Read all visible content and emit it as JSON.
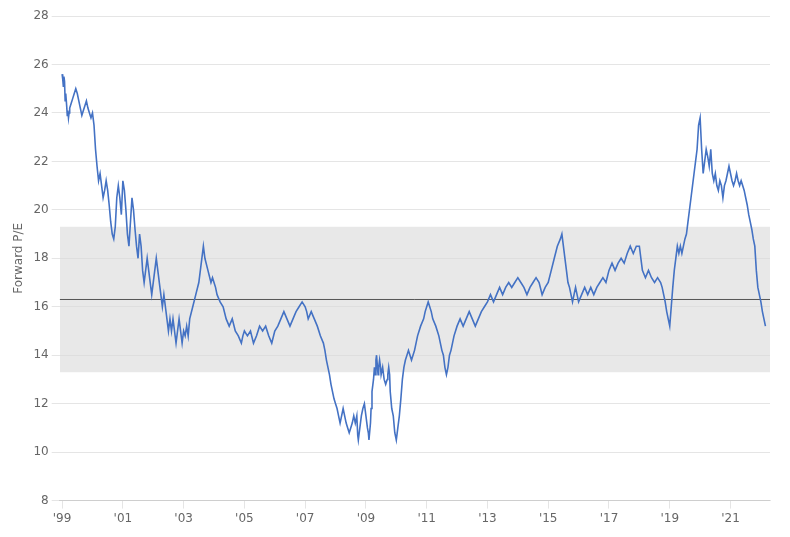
{
  "chart_data": {
    "type": "line",
    "ylabel": "Forward P/E",
    "xlim": [
      1998.92,
      2022.3
    ],
    "xticks": [
      {
        "value": 1999,
        "label": "'99"
      },
      {
        "value": 2001,
        "label": "'01"
      },
      {
        "value": 2003,
        "label": "'03"
      },
      {
        "value": 2005,
        "label": "'05"
      },
      {
        "value": 2007,
        "label": "'07"
      },
      {
        "value": 2009,
        "label": "'09"
      },
      {
        "value": 2011,
        "label": "'11"
      },
      {
        "value": 2013,
        "label": "'13"
      },
      {
        "value": 2015,
        "label": "'15"
      },
      {
        "value": 2017,
        "label": "'17"
      },
      {
        "value": 2019,
        "label": "'19"
      },
      {
        "value": 2021,
        "label": "'21"
      }
    ],
    "ylim": [
      8,
      28
    ],
    "yticks": [
      8,
      10,
      12,
      14,
      16,
      18,
      20,
      22,
      24,
      26,
      28
    ],
    "grid": true,
    "color": "#4472C4",
    "mean_line": {
      "value": 16.3,
      "color": "#555555"
    },
    "band": {
      "lower": 13.3,
      "upper": 19.3,
      "color": "#d8d8d8"
    },
    "x": [
      1999.0,
      1999.02,
      1999.04,
      1999.06,
      1999.08,
      1999.1,
      1999.12,
      1999.15,
      1999.17,
      1999.19,
      1999.21,
      1999.23,
      1999.25,
      1999.3,
      1999.35,
      1999.4,
      1999.45,
      1999.5,
      1999.55,
      1999.6,
      1999.65,
      1999.7,
      1999.75,
      1999.8,
      1999.85,
      1999.9,
      1999.95,
      2000.0,
      2000.05,
      2000.1,
      2000.15,
      2000.2,
      2000.25,
      2000.3,
      2000.35,
      2000.4,
      2000.45,
      2000.5,
      2000.55,
      2000.6,
      2000.65,
      2000.7,
      2000.75,
      2000.8,
      2000.85,
      2000.9,
      2000.95,
      2001.0,
      2001.05,
      2001.1,
      2001.15,
      2001.2,
      2001.25,
      2001.3,
      2001.35,
      2001.4,
      2001.45,
      2001.5,
      2001.55,
      2001.6,
      2001.65,
      2001.7,
      2001.75,
      2001.8,
      2001.85,
      2001.9,
      2001.95,
      2002.0,
      2002.05,
      2002.1,
      2002.15,
      2002.2,
      2002.25,
      2002.3,
      2002.35,
      2002.4,
      2002.45,
      2002.5,
      2002.55,
      2002.6,
      2002.65,
      2002.7,
      2002.75,
      2002.8,
      2002.85,
      2002.9,
      2002.95,
      2003.0,
      2003.05,
      2003.1,
      2003.15,
      2003.2,
      2003.3,
      2003.4,
      2003.5,
      2003.6,
      2003.65,
      2003.7,
      2003.8,
      2003.9,
      2003.95,
      2004.0,
      2004.05,
      2004.1,
      2004.2,
      2004.3,
      2004.4,
      2004.5,
      2004.6,
      2004.7,
      2004.8,
      2004.9,
      2004.95,
      2005.0,
      2005.1,
      2005.2,
      2005.3,
      2005.4,
      2005.5,
      2005.6,
      2005.7,
      2005.8,
      2005.9,
      2006.0,
      2006.1,
      2006.2,
      2006.3,
      2006.4,
      2006.5,
      2006.6,
      2006.7,
      2006.8,
      2006.9,
      2007.0,
      2007.05,
      2007.1,
      2007.2,
      2007.3,
      2007.4,
      2007.5,
      2007.6,
      2007.65,
      2007.7,
      2007.75,
      2007.8,
      2007.85,
      2007.9,
      2007.95,
      2008.0,
      2008.05,
      2008.1,
      2008.15,
      2008.2,
      2008.25,
      2008.3,
      2008.35,
      2008.4,
      2008.45,
      2008.5,
      2008.55,
      2008.6,
      2008.65,
      2008.7,
      2008.73,
      2008.75,
      2008.78,
      2008.82,
      2008.85,
      2008.9,
      2008.95,
      2009.0,
      2009.05,
      2009.08,
      2009.1,
      2009.15,
      2009.17,
      2009.2,
      2009.25,
      2009.28,
      2009.3,
      2009.33,
      2009.35,
      2009.38,
      2009.4,
      2009.42,
      2009.45,
      2009.48,
      2009.5,
      2009.55,
      2009.6,
      2009.65,
      2009.7,
      2009.72,
      2009.75,
      2009.78,
      2009.8,
      2009.85,
      2009.9,
      2009.95,
      2010.0,
      2010.05,
      2010.1,
      2010.15,
      2010.2,
      2010.25,
      2010.3,
      2010.35,
      2010.4,
      2010.45,
      2010.5,
      2010.55,
      2010.6,
      2010.65,
      2010.7,
      2010.8,
      2010.9,
      2010.95,
      2011.0,
      2011.05,
      2011.1,
      2011.15,
      2011.2,
      2011.3,
      2011.4,
      2011.45,
      2011.5,
      2011.55,
      2011.6,
      2011.65,
      2011.7,
      2011.75,
      2011.8,
      2011.85,
      2011.9,
      2011.95,
      2012.0,
      2012.1,
      2012.2,
      2012.3,
      2012.4,
      2012.5,
      2012.6,
      2012.7,
      2012.8,
      2012.9,
      2013.0,
      2013.1,
      2013.2,
      2013.3,
      2013.4,
      2013.5,
      2013.6,
      2013.7,
      2013.8,
      2013.9,
      2014.0,
      2014.1,
      2014.2,
      2014.3,
      2014.4,
      2014.5,
      2014.6,
      2014.7,
      2014.8,
      2014.9,
      2015.0,
      2015.1,
      2015.2,
      2015.3,
      2015.4,
      2015.45,
      2015.5,
      2015.55,
      2015.6,
      2015.65,
      2015.7,
      2015.75,
      2015.8,
      2015.85,
      2015.9,
      2015.95,
      2016.0,
      2016.1,
      2016.2,
      2016.3,
      2016.4,
      2016.5,
      2016.6,
      2016.7,
      2016.8,
      2016.9,
      2017.0,
      2017.1,
      2017.2,
      2017.3,
      2017.4,
      2017.5,
      2017.6,
      2017.7,
      2017.8,
      2017.9,
      2018.0,
      2018.05,
      2018.1,
      2018.2,
      2018.3,
      2018.4,
      2018.5,
      2018.6,
      2018.7,
      2018.75,
      2018.8,
      2018.85,
      2018.9,
      2018.95,
      2019.0,
      2019.05,
      2019.1,
      2019.15,
      2019.2,
      2019.25,
      2019.3,
      2019.35,
      2019.4,
      2019.45,
      2019.5,
      2019.55,
      2019.6,
      2019.7,
      2019.75,
      2019.8,
      2019.85,
      2019.9,
      2019.95,
      2020.0,
      2020.05,
      2020.1,
      2020.15,
      2020.2,
      2020.25,
      2020.3,
      2020.35,
      2020.4,
      2020.45,
      2020.5,
      2020.55,
      2020.6,
      2020.65,
      2020.7,
      2020.75,
      2020.8,
      2020.85,
      2020.9,
      2020.95,
      2021.0,
      2021.05,
      2021.1,
      2021.15,
      2021.2,
      2021.25,
      2021.3,
      2021.35,
      2021.4,
      2021.45,
      2021.5,
      2021.55,
      2021.6,
      2021.65,
      2021.7,
      2021.75,
      2021.8,
      2021.85,
      2021.9,
      2021.95,
      2022.0,
      2022.05,
      2022.1,
      2022.15
    ],
    "values": [
      25.6,
      25.4,
      25.1,
      25.5,
      25.3,
      24.5,
      24.8,
      24.3,
      23.9,
      24.1,
      23.8,
      24.0,
      24.2,
      24.4,
      24.6,
      24.8,
      25.0,
      24.8,
      24.5,
      24.2,
      23.9,
      24.1,
      24.3,
      24.5,
      24.2,
      24.0,
      23.8,
      24.0,
      23.5,
      22.5,
      21.8,
      21.2,
      21.5,
      21.0,
      20.5,
      20.8,
      21.2,
      20.8,
      20.2,
      19.5,
      19.0,
      18.8,
      19.3,
      20.5,
      21.0,
      20.5,
      19.8,
      21.2,
      20.8,
      20.0,
      19.0,
      18.5,
      19.5,
      20.5,
      20.0,
      19.2,
      18.5,
      18.0,
      19.0,
      18.5,
      17.5,
      17.0,
      17.5,
      18.0,
      17.5,
      17.0,
      16.5,
      17.0,
      17.5,
      18.0,
      17.5,
      17.0,
      16.5,
      16.0,
      16.5,
      16.0,
      15.5,
      15.0,
      15.5,
      15.0,
      15.5,
      15.0,
      14.5,
      15.0,
      15.5,
      15.0,
      14.5,
      15.0,
      14.8,
      15.2,
      14.8,
      15.5,
      16.0,
      16.5,
      17.0,
      18.0,
      18.5,
      18.0,
      17.5,
      17.0,
      17.2,
      17.0,
      16.8,
      16.5,
      16.2,
      16.0,
      15.5,
      15.2,
      15.5,
      15.0,
      14.8,
      14.5,
      14.8,
      15.0,
      14.8,
      15.0,
      14.5,
      14.8,
      15.2,
      15.0,
      15.2,
      14.8,
      14.5,
      15.0,
      15.2,
      15.5,
      15.8,
      15.5,
      15.2,
      15.5,
      15.8,
      16.0,
      16.2,
      16.0,
      15.8,
      15.5,
      15.8,
      15.5,
      15.2,
      14.8,
      14.5,
      14.2,
      13.8,
      13.5,
      13.2,
      12.8,
      12.5,
      12.2,
      12.0,
      11.8,
      11.5,
      11.2,
      11.5,
      11.8,
      11.5,
      11.2,
      11.0,
      10.8,
      11.0,
      11.2,
      11.5,
      11.2,
      11.5,
      10.7,
      10.5,
      10.8,
      11.2,
      11.5,
      11.8,
      12.0,
      11.5,
      11.0,
      10.8,
      10.5,
      11.2,
      11.8,
      12.5,
      13.0,
      13.5,
      13.2,
      13.8,
      14.0,
      13.5,
      13.2,
      13.5,
      13.8,
      13.5,
      13.2,
      13.5,
      13.0,
      12.8,
      13.0,
      13.2,
      13.5,
      13.2,
      12.5,
      11.8,
      11.5,
      10.8,
      10.5,
      11.0,
      11.5,
      12.2,
      13.0,
      13.5,
      13.8,
      14.0,
      14.2,
      14.0,
      13.8,
      14.0,
      14.2,
      14.5,
      14.8,
      15.2,
      15.5,
      15.8,
      16.0,
      16.2,
      16.0,
      15.8,
      15.5,
      15.2,
      14.8,
      14.5,
      14.2,
      14.0,
      13.5,
      13.2,
      13.5,
      14.0,
      14.2,
      14.5,
      14.8,
      15.0,
      15.2,
      15.5,
      15.2,
      15.5,
      15.8,
      15.5,
      15.2,
      15.5,
      15.8,
      16.0,
      16.2,
      16.5,
      16.2,
      16.5,
      16.8,
      16.5,
      16.8,
      17.0,
      16.8,
      17.0,
      17.2,
      17.0,
      16.8,
      16.5,
      16.8,
      17.0,
      17.2,
      17.0,
      16.5,
      16.8,
      17.0,
      17.5,
      18.0,
      18.5,
      18.8,
      19.0,
      18.5,
      18.0,
      17.5,
      17.0,
      16.8,
      16.5,
      16.2,
      16.5,
      16.8,
      16.5,
      16.2,
      16.5,
      16.8,
      16.5,
      16.8,
      16.5,
      16.8,
      17.0,
      17.2,
      17.0,
      17.5,
      17.8,
      17.5,
      17.8,
      18.0,
      17.8,
      18.2,
      18.5,
      18.2,
      18.5,
      18.5,
      18.0,
      17.5,
      17.2,
      17.5,
      17.2,
      17.0,
      17.2,
      17.0,
      16.8,
      16.5,
      16.2,
      15.8,
      15.5,
      15.2,
      16.0,
      16.8,
      17.5,
      18.0,
      18.5,
      18.2,
      18.5,
      18.2,
      18.5,
      18.8,
      19.0,
      19.5,
      20.5,
      21.0,
      21.5,
      22.0,
      22.5,
      23.5,
      23.8,
      22.5,
      21.5,
      22.0,
      22.5,
      22.2,
      21.8,
      22.5,
      21.5,
      21.2,
      21.5,
      21.0,
      20.8,
      21.2,
      21.0,
      20.5,
      21.0,
      21.2,
      21.5,
      21.8,
      21.5,
      21.2,
      21.0,
      21.2,
      21.5,
      21.2,
      21.0,
      21.2,
      21.0,
      20.8,
      20.5,
      20.2,
      19.8,
      19.5,
      19.2,
      18.8,
      18.5,
      17.5,
      16.8,
      16.5,
      16.2,
      15.8,
      15.5,
      15.2
    ]
  }
}
